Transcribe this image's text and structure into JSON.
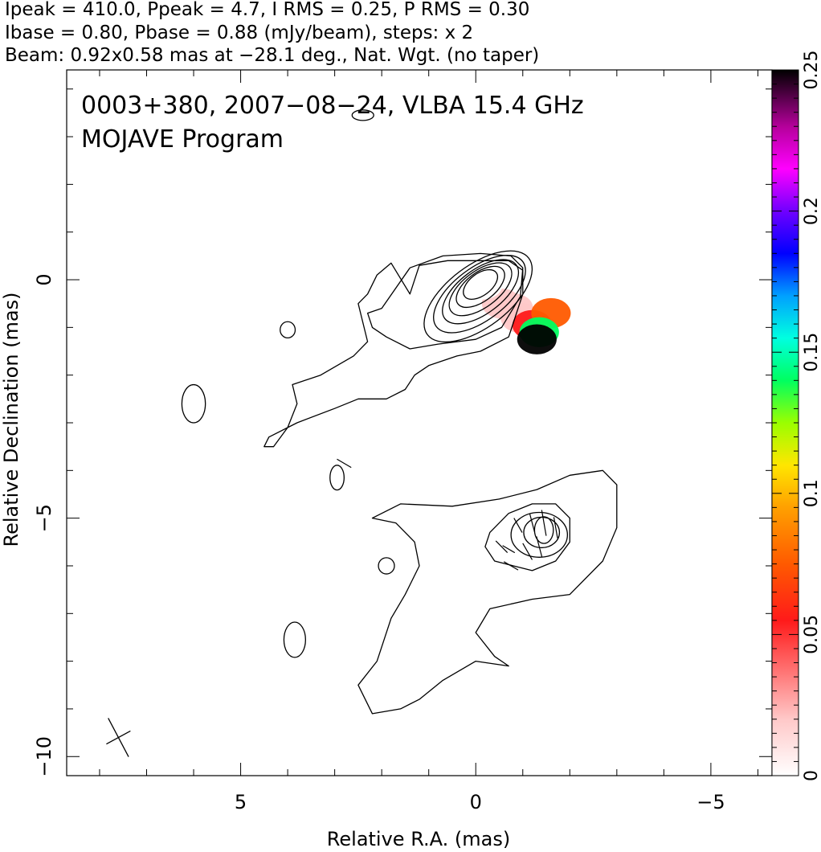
{
  "chart_data": {
    "type": "contour",
    "header_lines": [
      "Ipeak = 410.0, Ppeak = 4.7, I RMS = 0.25, P RMS = 0.30",
      "Ibase = 0.80, Pbase = 0.88 (mJy/beam), steps: x 2",
      "Beam: 0.92x0.58 mas at −28.1 deg., Nat. Wgt. (no taper)"
    ],
    "annotation_lines": [
      "0003+380, 2007−08−24, VLBA 15.4 GHz",
      "MOJAVE Program"
    ],
    "xlabel": "Relative R.A. (mas)",
    "ylabel": "Relative Declination (mas)",
    "xlim": [
      8.7,
      -6.3
    ],
    "ylim": [
      -10.4,
      4.4
    ],
    "x_ticks": [
      5,
      0,
      -5
    ],
    "x_tick_labels": [
      "5",
      "0",
      "−5"
    ],
    "y_ticks": [
      0,
      -5,
      -10
    ],
    "y_tick_labels": [
      "0",
      "−5",
      "−10"
    ],
    "colorbar": {
      "min": 0,
      "max": 0.25,
      "ticks": [
        0,
        0.05,
        0.1,
        0.15,
        0.2,
        0.25
      ],
      "tick_labels": [
        "0",
        "0.05",
        "0.1",
        "0.15",
        "0.2",
        "0.25"
      ]
    },
    "beam": {
      "major_mas": 0.92,
      "minor_mas": 0.58,
      "pa_deg": -28.1,
      "center": [
        7.6,
        -9.6
      ]
    },
    "core_contours": [
      {
        "cx": -0.05,
        "cy": -0.35,
        "rx": 1.35,
        "ry": 0.65,
        "rot_deg": 37
      },
      {
        "cx": -0.08,
        "cy": -0.3,
        "rx": 1.15,
        "ry": 0.55,
        "rot_deg": 37
      },
      {
        "cx": -0.1,
        "cy": -0.25,
        "rx": 0.95,
        "ry": 0.46,
        "rot_deg": 37
      },
      {
        "cx": -0.1,
        "cy": -0.2,
        "rx": 0.78,
        "ry": 0.38,
        "rot_deg": 37
      },
      {
        "cx": -0.1,
        "cy": -0.15,
        "rx": 0.6,
        "ry": 0.3,
        "rot_deg": 37
      },
      {
        "cx": -0.1,
        "cy": -0.1,
        "rx": 0.42,
        "ry": 0.23,
        "rot_deg": 37
      }
    ],
    "jet_contours": [
      {
        "cx": -1.35,
        "cy": -5.35,
        "rx": 0.6,
        "ry": 0.47,
        "rot_deg": 0
      },
      {
        "cx": -1.4,
        "cy": -5.3,
        "rx": 0.38,
        "ry": 0.32,
        "rot_deg": 0
      },
      {
        "cx": -1.45,
        "cy": -5.25,
        "rx": 0.2,
        "ry": 0.28,
        "rot_deg": 0
      }
    ],
    "islands": [
      {
        "cx": 4.0,
        "cy": -1.05,
        "rx": 0.16,
        "ry": 0.17
      },
      {
        "cx": 6.0,
        "cy": -2.6,
        "rx": 0.25,
        "ry": 0.4
      },
      {
        "cx": 2.95,
        "cy": -4.15,
        "rx": 0.15,
        "ry": 0.26
      },
      {
        "cx": 1.9,
        "cy": -6.0,
        "rx": 0.17,
        "ry": 0.17
      },
      {
        "cx": 3.85,
        "cy": -7.55,
        "rx": 0.23,
        "ry": 0.37
      },
      {
        "cx": 2.4,
        "cy": 3.45,
        "rx": 0.23,
        "ry": 0.11
      }
    ],
    "evpa_ticks": [
      {
        "x": 2.8,
        "y": -3.85,
        "len": 0.35,
        "angle_deg": 30
      },
      {
        "x": -0.55,
        "y": -5.6,
        "len": 0.35,
        "angle_deg": 45
      },
      {
        "x": -0.7,
        "y": -5.65,
        "len": 0.3,
        "angle_deg": 30
      },
      {
        "x": -0.75,
        "y": -6.0,
        "len": 0.35,
        "angle_deg": 30
      },
      {
        "x": -0.9,
        "y": -5.15,
        "len": 0.35,
        "angle_deg": 60
      },
      {
        "x": -1.2,
        "y": -5.1,
        "len": 0.4,
        "angle_deg": 75
      },
      {
        "x": -1.45,
        "y": -5.1,
        "len": 0.55,
        "angle_deg": 80
      },
      {
        "x": -1.7,
        "y": -5.2,
        "len": 0.45,
        "angle_deg": 80
      },
      {
        "x": -1.35,
        "y": -5.6,
        "len": 0.45,
        "angle_deg": 75
      },
      {
        "x": -1.1,
        "y": -5.7,
        "len": 0.4,
        "angle_deg": 60
      }
    ],
    "fractional_polarization_pixels": [
      {
        "x": -0.55,
        "y": -0.5,
        "value": 0.05
      },
      {
        "x": -0.8,
        "y": -0.6,
        "value": 0.045
      },
      {
        "x": -0.95,
        "y": -0.8,
        "value": 0.05
      },
      {
        "x": -1.2,
        "y": -0.95,
        "value": 0.06
      },
      {
        "x": -1.6,
        "y": -0.7,
        "value": 0.08
      },
      {
        "x": -1.35,
        "y": -1.1,
        "value": 0.15
      },
      {
        "x": -1.3,
        "y": -1.25,
        "value": 0.25
      },
      {
        "x": -0.15,
        "y": -0.1,
        "value": 0.01
      }
    ],
    "colors": {
      "contour": "#000000",
      "axes": "#000000",
      "background": "#ffffff"
    }
  }
}
